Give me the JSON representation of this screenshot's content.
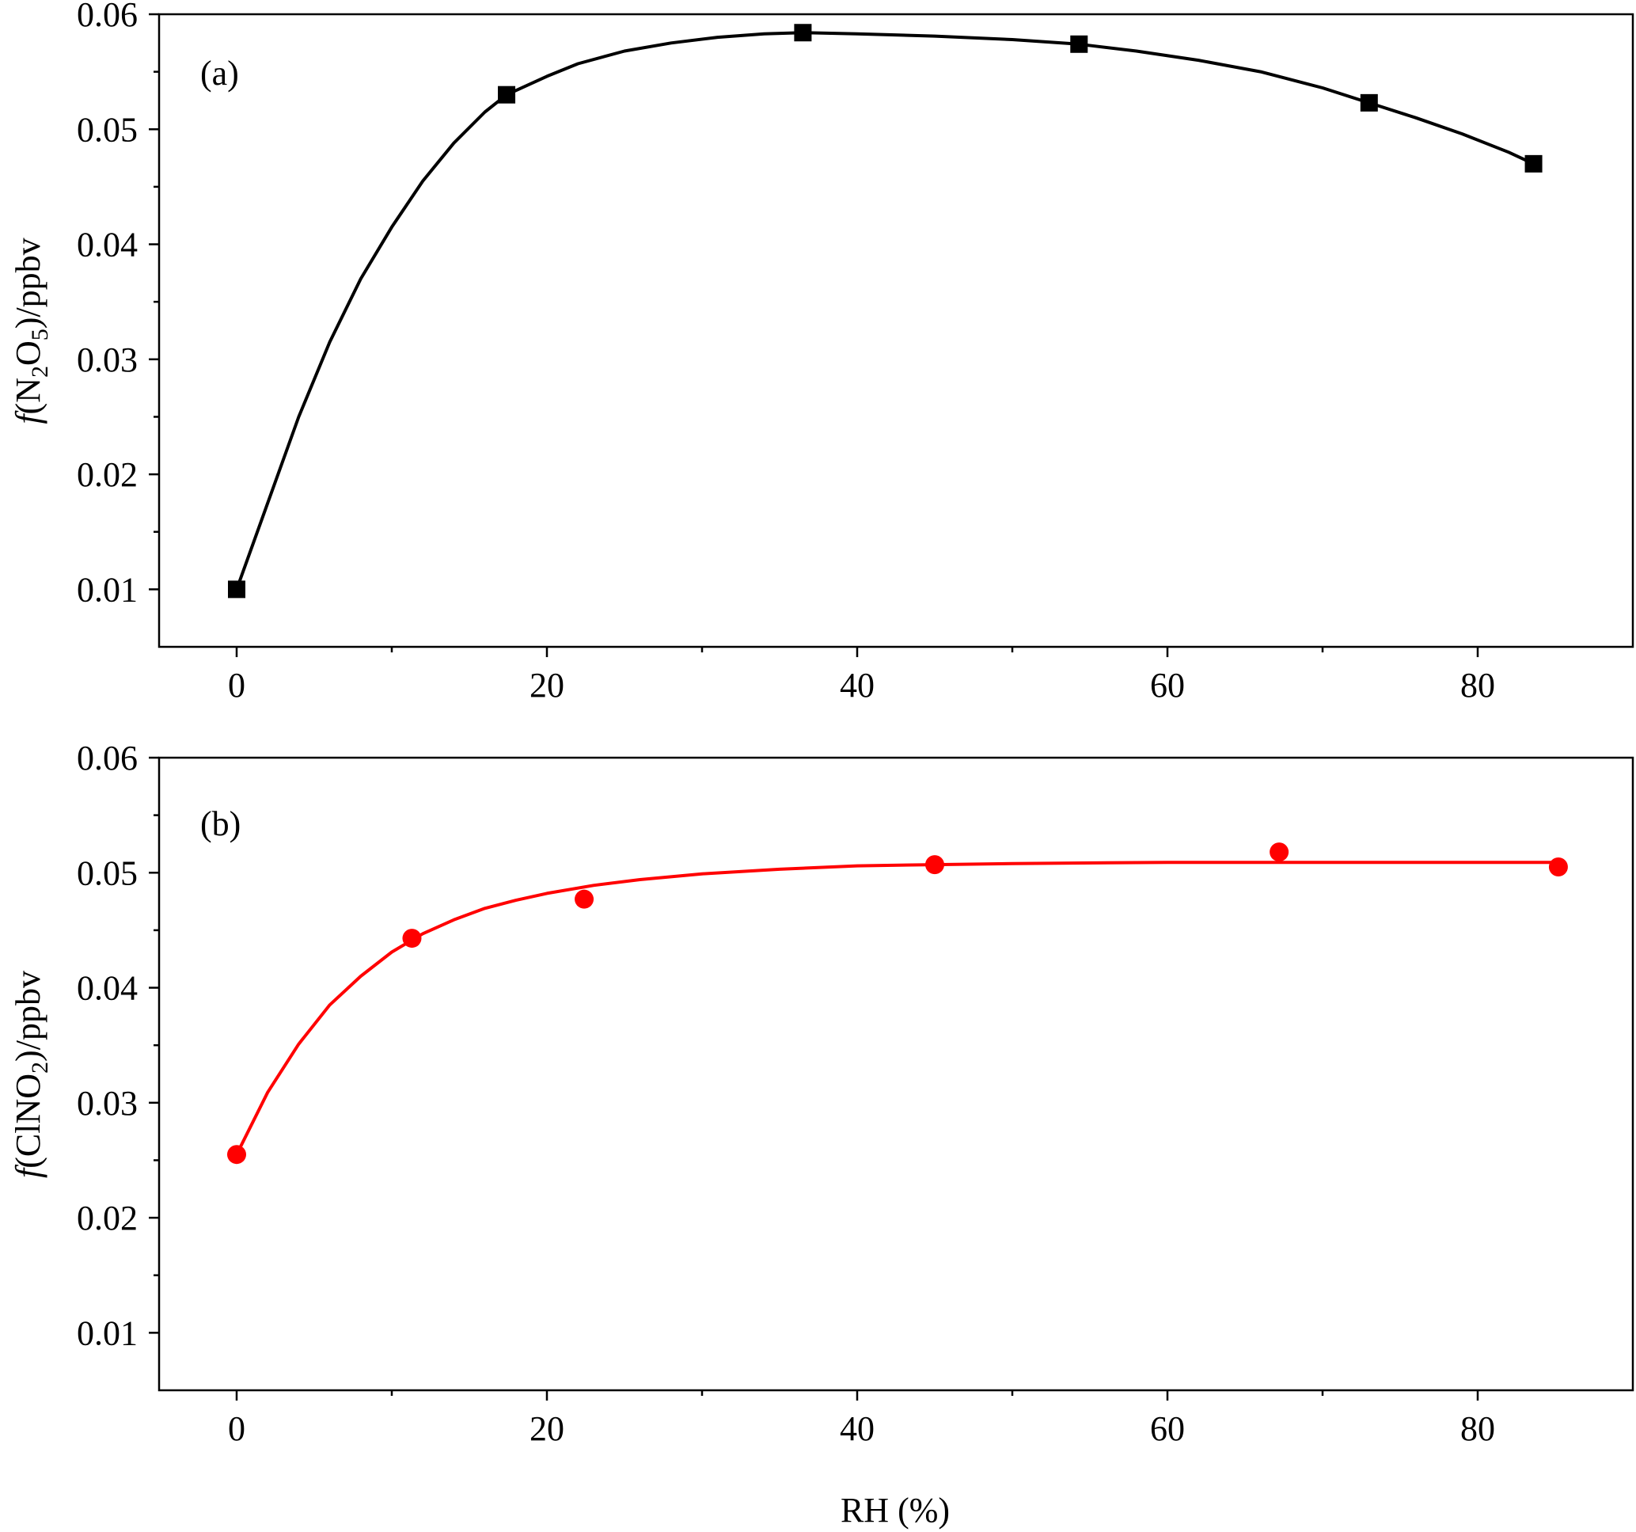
{
  "chart_data": [
    {
      "type": "line",
      "panel_label": "(a)",
      "ylabel": {
        "prefix": "f",
        "parts": [
          [
            "(N",
            false
          ],
          [
            "2",
            true
          ],
          [
            "O",
            false
          ],
          [
            "5",
            true
          ],
          [
            ")/ppbv",
            false
          ]
        ]
      },
      "xlim": [
        -5,
        90
      ],
      "ylim": [
        0.005,
        0.06
      ],
      "xticks": [
        0,
        20,
        40,
        60,
        80
      ],
      "xtick_labels": [
        "0",
        "20",
        "40",
        "60",
        "80"
      ],
      "yticks": [
        0.01,
        0.02,
        0.03,
        0.04,
        0.05,
        0.06
      ],
      "ytick_labels": [
        "0.01",
        "0.02",
        "0.03",
        "0.04",
        "0.05",
        "0.06"
      ],
      "marker": "square",
      "color": "#000000",
      "points": [
        {
          "x": 0,
          "y": 0.01
        },
        {
          "x": 17.4,
          "y": 0.053
        },
        {
          "x": 36.5,
          "y": 0.0584
        },
        {
          "x": 54.3,
          "y": 0.0574
        },
        {
          "x": 73.0,
          "y": 0.0523
        },
        {
          "x": 83.6,
          "y": 0.047
        }
      ],
      "curve": [
        [
          0,
          0.01
        ],
        [
          2,
          0.0175
        ],
        [
          4,
          0.025
        ],
        [
          6,
          0.0315
        ],
        [
          8,
          0.037
        ],
        [
          10,
          0.0415
        ],
        [
          12,
          0.0455
        ],
        [
          14,
          0.0488
        ],
        [
          16,
          0.0515
        ],
        [
          17.4,
          0.053
        ],
        [
          20,
          0.0546
        ],
        [
          22,
          0.0557
        ],
        [
          25,
          0.0568
        ],
        [
          28,
          0.0575
        ],
        [
          31,
          0.058
        ],
        [
          34,
          0.0583
        ],
        [
          36.5,
          0.0584
        ],
        [
          40,
          0.0583
        ],
        [
          45,
          0.0581
        ],
        [
          50,
          0.0578
        ],
        [
          54.3,
          0.0574
        ],
        [
          58,
          0.0568
        ],
        [
          62,
          0.056
        ],
        [
          66,
          0.055
        ],
        [
          70,
          0.0536
        ],
        [
          73,
          0.0523
        ],
        [
          76,
          0.051
        ],
        [
          79,
          0.0496
        ],
        [
          82,
          0.048
        ],
        [
          83.6,
          0.047
        ]
      ]
    },
    {
      "type": "scatter",
      "panel_label": "(b)",
      "ylabel": {
        "prefix": "f",
        "parts": [
          [
            "(ClNO",
            false
          ],
          [
            "2",
            true
          ],
          [
            ")/ppbv",
            false
          ]
        ]
      },
      "xlim": [
        -5,
        90
      ],
      "ylim": [
        0.005,
        0.06
      ],
      "xticks": [
        0,
        20,
        40,
        60,
        80
      ],
      "xtick_labels": [
        "0",
        "20",
        "40",
        "60",
        "80"
      ],
      "yticks": [
        0.01,
        0.02,
        0.03,
        0.04,
        0.05,
        0.06
      ],
      "ytick_labels": [
        "0.01",
        "0.02",
        "0.03",
        "0.04",
        "0.05",
        "0.06"
      ],
      "xlabel": "RH (%)",
      "marker": "circle",
      "color": "#ff0000",
      "points": [
        {
          "x": 0,
          "y": 0.0255
        },
        {
          "x": 11.3,
          "y": 0.0443
        },
        {
          "x": 22.4,
          "y": 0.0477
        },
        {
          "x": 45.0,
          "y": 0.0507
        },
        {
          "x": 67.2,
          "y": 0.0518
        },
        {
          "x": 85.2,
          "y": 0.0505
        }
      ],
      "fit_curve": [
        [
          0,
          0.0255
        ],
        [
          2,
          0.0309
        ],
        [
          4,
          0.0351
        ],
        [
          6,
          0.0385
        ],
        [
          8,
          0.041
        ],
        [
          10,
          0.0431
        ],
        [
          12,
          0.0447
        ],
        [
          14,
          0.0459
        ],
        [
          16,
          0.0469
        ],
        [
          18,
          0.0476
        ],
        [
          20,
          0.0482
        ],
        [
          23,
          0.0489
        ],
        [
          26,
          0.0494
        ],
        [
          30,
          0.0499
        ],
        [
          35,
          0.0503
        ],
        [
          40,
          0.0506
        ],
        [
          45,
          0.0507
        ],
        [
          50,
          0.0508
        ],
        [
          60,
          0.0509
        ],
        [
          70,
          0.0509
        ],
        [
          80,
          0.0509
        ],
        [
          85.2,
          0.0509
        ]
      ]
    }
  ]
}
